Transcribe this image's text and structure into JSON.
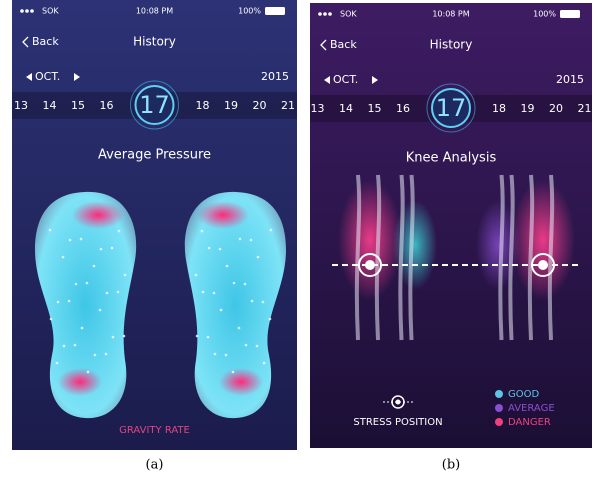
{
  "screens": [
    {
      "status": {
        "carrier": "SOK",
        "time": "10:08 PM",
        "battery": "100%"
      },
      "nav": {
        "back": "Back",
        "title": "History"
      },
      "month": "OCT.",
      "year": "2015",
      "days": [
        "13",
        "14",
        "15",
        "16",
        "17",
        "18",
        "19",
        "20",
        "21"
      ],
      "heading": "Average Pressure",
      "footer": "GRAVITY RATE",
      "caption": "(a)"
    },
    {
      "status": {
        "carrier": "SOK",
        "time": "10:08 PM",
        "battery": "100%"
      },
      "nav": {
        "back": "Back",
        "title": "History"
      },
      "month": "OCT.",
      "year": "2015",
      "days": [
        "13",
        "14",
        "15",
        "16",
        "17",
        "18",
        "19",
        "20",
        "21"
      ],
      "heading": "Knee Analysis",
      "stress": "STRESS POSITION",
      "legend": [
        {
          "label": "GOOD",
          "color": "#5fc3e8"
        },
        {
          "label": "AVERAGE",
          "color": "#8a4fd0"
        },
        {
          "label": "DANGER",
          "color": "#f0407e"
        }
      ],
      "caption": "(b)"
    }
  ]
}
